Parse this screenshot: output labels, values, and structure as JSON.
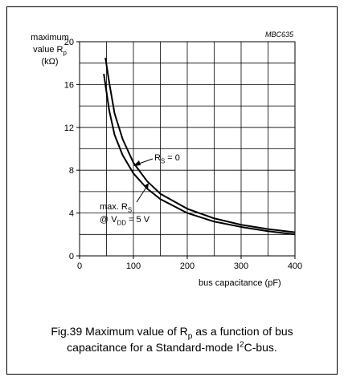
{
  "chart_data": {
    "type": "line",
    "code": "MBC635",
    "ylabel": [
      [
        "maximum"
      ],
      [
        "value R",
        "p"
      ],
      [
        "(kΩ)"
      ]
    ],
    "xlabel": "bus capacitance (pF)",
    "xlim": [
      0,
      400
    ],
    "xticks": [
      0,
      100,
      200,
      300,
      400
    ],
    "ylim": [
      0,
      20
    ],
    "yticks": [
      0,
      4,
      8,
      12,
      16,
      20
    ],
    "xgrid": [
      0,
      50,
      100,
      150,
      200,
      250,
      300,
      350,
      400
    ],
    "ygrid": [
      0,
      2,
      4,
      6,
      8,
      10,
      12,
      14,
      16,
      18,
      20
    ],
    "series": [
      {
        "color": "#000000",
        "x": [
          48,
          55,
          65,
          80,
          100,
          125,
          150,
          200,
          250,
          300,
          350,
          400
        ],
        "values": [
          18.5,
          16.2,
          13.3,
          10.9,
          8.7,
          7.0,
          5.8,
          4.4,
          3.5,
          2.9,
          2.5,
          2.2
        ]
      },
      {
        "color": "#000000",
        "x": [
          45,
          55,
          65,
          80,
          100,
          125,
          150,
          200,
          250,
          300,
          350,
          400
        ],
        "values": [
          17.0,
          13.6,
          11.3,
          9.4,
          7.7,
          6.3,
          5.3,
          4.0,
          3.2,
          2.7,
          2.3,
          2.0
        ]
      }
    ],
    "annotations": [
      [
        "R",
        "S",
        " = 0"
      ],
      [
        "max. R",
        "S"
      ],
      [
        "@ V",
        "DD",
        " = 5 V"
      ]
    ],
    "caption": [
      [
        "Fig.39  Maximum value of R",
        "p",
        " as a function of bus"
      ],
      [
        "capacitance for a Standard-mode I",
        "2",
        "C-bus."
      ]
    ]
  }
}
